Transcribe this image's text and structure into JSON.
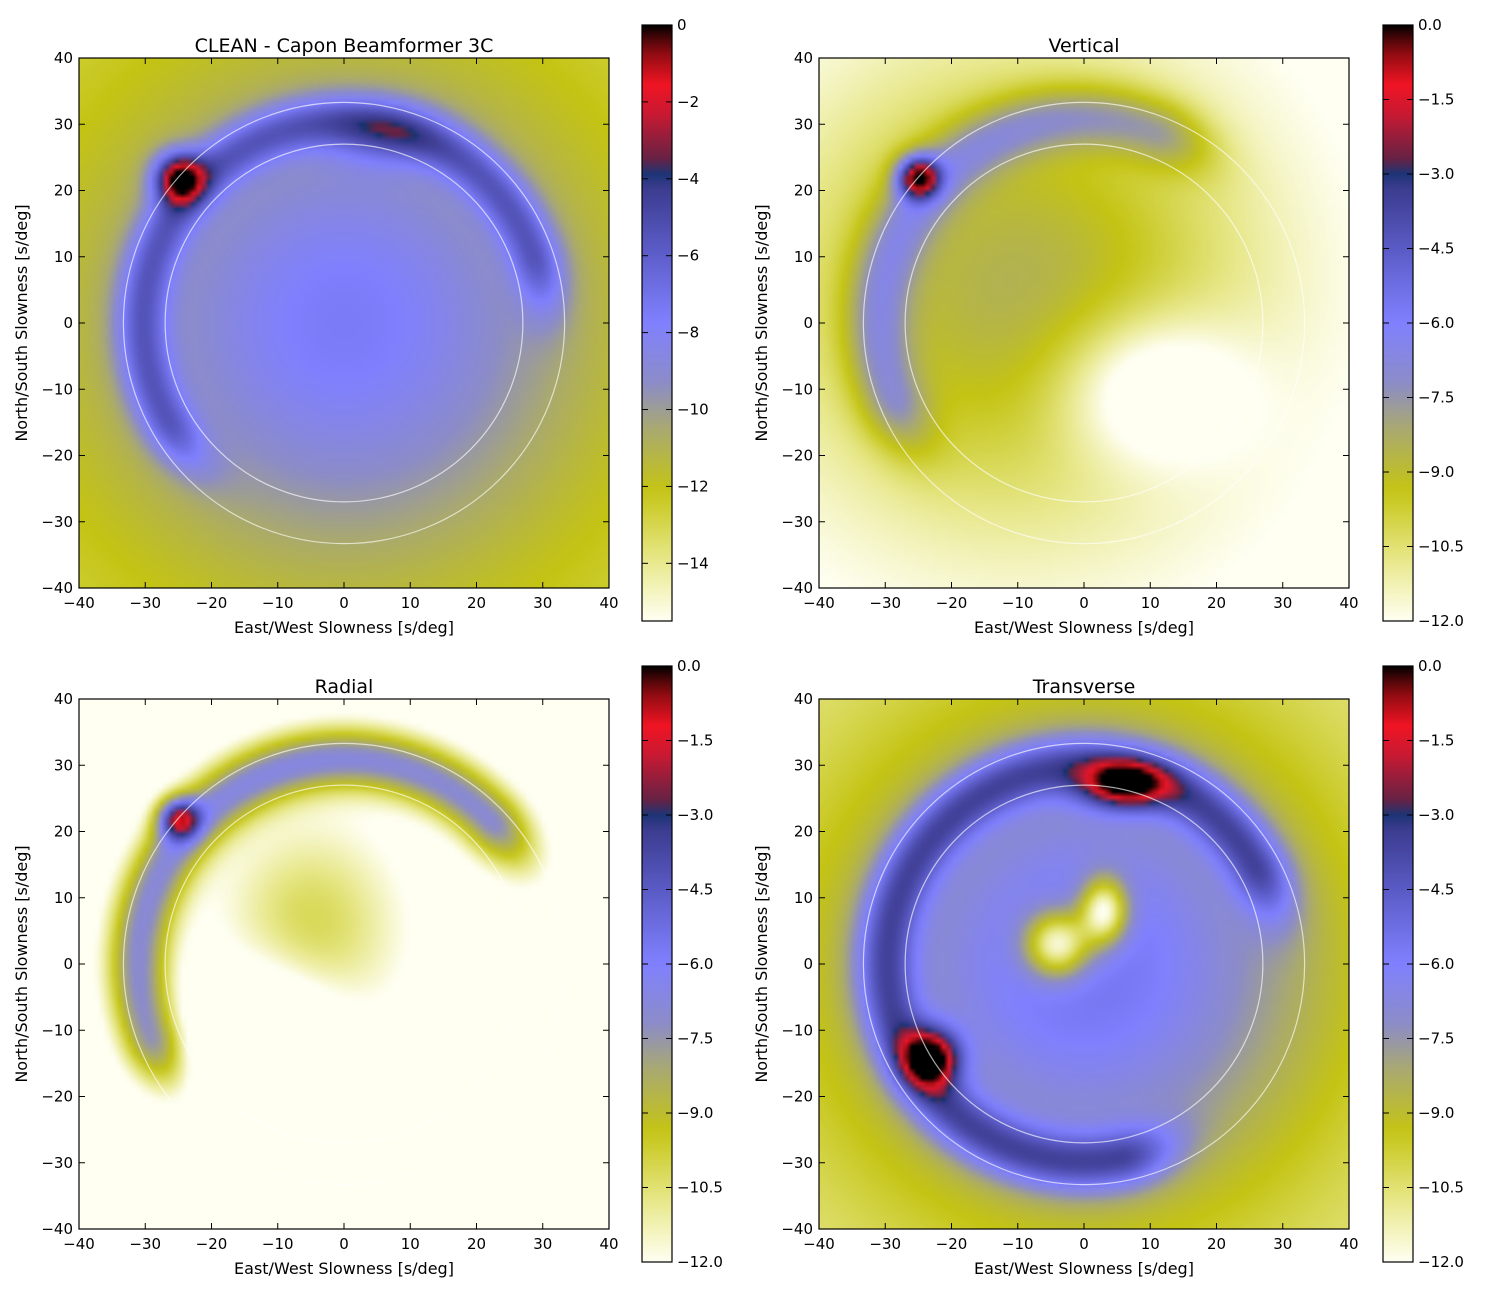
{
  "chart_data": [
    {
      "type": "heatmap",
      "title": "CLEAN - Capon Beamformer 3C",
      "xlabel": "East/West Slowness [s/deg]",
      "ylabel": "North/South Slowness [s/deg]",
      "xlim": [
        -40,
        40
      ],
      "ylim": [
        -40,
        40
      ],
      "xticks": [
        -40,
        -30,
        -20,
        -10,
        0,
        10,
        20,
        30,
        40
      ],
      "yticks": [
        -40,
        -30,
        -20,
        -10,
        0,
        10,
        20,
        30,
        40
      ],
      "colorbar": {
        "range": [
          -15.5,
          0
        ],
        "ticks": [
          "0",
          "−2",
          "−4",
          "−6",
          "−8",
          "−10",
          "−12",
          "−14"
        ],
        "tick_values": [
          0,
          -2,
          -4,
          -6,
          -8,
          -10,
          -12,
          -14
        ]
      },
      "rings": [
        27,
        33.3
      ],
      "background": -13,
      "features": [
        {
          "kind": "arc",
          "radius": 30.5,
          "from_deg": 20,
          "to_deg": 208,
          "width": 2.8,
          "value": 4.8
        },
        {
          "kind": "blob",
          "x": -25,
          "y": 22,
          "sx": 2.6,
          "sy": 2.6,
          "value": 9
        },
        {
          "kind": "blob",
          "x": 6,
          "y": 28,
          "sx": 6,
          "sy": 3.5,
          "value": 2.2
        },
        {
          "kind": "blob",
          "x": 0,
          "y": 0,
          "sx": 26,
          "sy": 26,
          "value": 5.5
        }
      ]
    },
    {
      "type": "heatmap",
      "title": "Vertical",
      "xlabel": "East/West Slowness [s/deg]",
      "ylabel": "North/South Slowness [s/deg]",
      "xlim": [
        -40,
        40
      ],
      "ylim": [
        -40,
        40
      ],
      "xticks": [
        -40,
        -30,
        -20,
        -10,
        0,
        10,
        20,
        30,
        40
      ],
      "yticks": [
        -40,
        -30,
        -20,
        -10,
        0,
        10,
        20,
        30,
        40
      ],
      "colorbar": {
        "range": [
          -12,
          0
        ],
        "ticks": [
          "0.0",
          "−1.5",
          "−3.0",
          "−4.5",
          "−6.0",
          "−7.5",
          "−9.0",
          "−10.5",
          "−12.0"
        ],
        "tick_values": [
          0,
          -1.5,
          -3,
          -4.5,
          -6,
          -7.5,
          -9,
          -10.5,
          -12
        ]
      },
      "rings": [
        27,
        33.3
      ],
      "background": -12.5,
      "features": [
        {
          "kind": "blob",
          "x": -10,
          "y": 5,
          "sx": 26,
          "sy": 26,
          "value": 4
        },
        {
          "kind": "arc",
          "radius": 31,
          "from_deg": 70,
          "to_deg": 200,
          "width": 3.5,
          "value": 3
        },
        {
          "kind": "blob",
          "x": -25,
          "y": 22,
          "sx": 2.2,
          "sy": 2.2,
          "value": 8
        },
        {
          "kind": "blob",
          "x": 10,
          "y": -10,
          "sx": 10,
          "sy": 8,
          "value": -3
        }
      ]
    },
    {
      "type": "heatmap",
      "title": "Radial",
      "xlabel": "East/West Slowness [s/deg]",
      "ylabel": "North/South Slowness [s/deg]",
      "xlim": [
        -40,
        40
      ],
      "ylim": [
        -40,
        40
      ],
      "xticks": [
        -40,
        -30,
        -20,
        -10,
        0,
        10,
        20,
        30,
        40
      ],
      "yticks": [
        -40,
        -30,
        -20,
        -10,
        0,
        10,
        20,
        30,
        40
      ],
      "colorbar": {
        "range": [
          -12,
          0
        ],
        "ticks": [
          "0.0",
          "−1.5",
          "−3.0",
          "−4.5",
          "−6.0",
          "−7.5",
          "−9.0",
          "−10.5",
          "−12.0"
        ],
        "tick_values": [
          0,
          -1.5,
          -3,
          -4.5,
          -6,
          -7.5,
          -9,
          -10.5,
          -12
        ]
      },
      "rings": [
        27,
        33.3
      ],
      "background": -13,
      "features": [
        {
          "kind": "arc",
          "radius": 31,
          "from_deg": 45,
          "to_deg": 200,
          "width": 3.5,
          "value": 6
        },
        {
          "kind": "blob",
          "x": -25,
          "y": 22,
          "sx": 2.2,
          "sy": 2.2,
          "value": 7
        },
        {
          "kind": "blob",
          "x": -5,
          "y": 5,
          "sx": 10,
          "sy": 12,
          "value": 3
        },
        {
          "kind": "blob",
          "x": -12,
          "y": -12,
          "sx": 8,
          "sy": 8,
          "value": -4
        }
      ]
    },
    {
      "type": "heatmap",
      "title": "Transverse",
      "xlabel": "East/West Slowness [s/deg]",
      "ylabel": "North/South Slowness [s/deg]",
      "xlim": [
        -40,
        40
      ],
      "ylim": [
        -40,
        40
      ],
      "xticks": [
        -40,
        -30,
        -20,
        -10,
        0,
        10,
        20,
        30,
        40
      ],
      "yticks": [
        -40,
        -30,
        -20,
        -10,
        0,
        10,
        20,
        30,
        40
      ],
      "colorbar": {
        "range": [
          -12,
          0
        ],
        "ticks": [
          "0.0",
          "−1.5",
          "−3.0",
          "−4.5",
          "−6.0",
          "−7.5",
          "−9.0",
          "−10.5",
          "−12.0"
        ],
        "tick_values": [
          0,
          -1.5,
          -3,
          -4.5,
          -6,
          -7.5,
          -9,
          -10.5,
          -12
        ]
      },
      "rings": [
        27,
        33.3
      ],
      "background": -11,
      "features": [
        {
          "kind": "blob",
          "x": 0,
          "y": 0,
          "sx": 27,
          "sy": 27,
          "value": 5.5
        },
        {
          "kind": "arc",
          "radius": 30,
          "from_deg": 30,
          "to_deg": 280,
          "width": 3.2,
          "value": 4.5
        },
        {
          "kind": "blob",
          "x": 6,
          "y": 27,
          "sx": 4.5,
          "sy": 2.5,
          "value": 6
        },
        {
          "kind": "blob",
          "x": -23,
          "y": -14,
          "sx": 3,
          "sy": 3,
          "value": 7
        },
        {
          "kind": "blob",
          "x": -4,
          "y": 3,
          "sx": 3.5,
          "sy": 3.5,
          "value": -6
        },
        {
          "kind": "blob",
          "x": 3,
          "y": 8,
          "sx": 2.5,
          "sy": 3.5,
          "value": -6
        }
      ]
    }
  ]
}
